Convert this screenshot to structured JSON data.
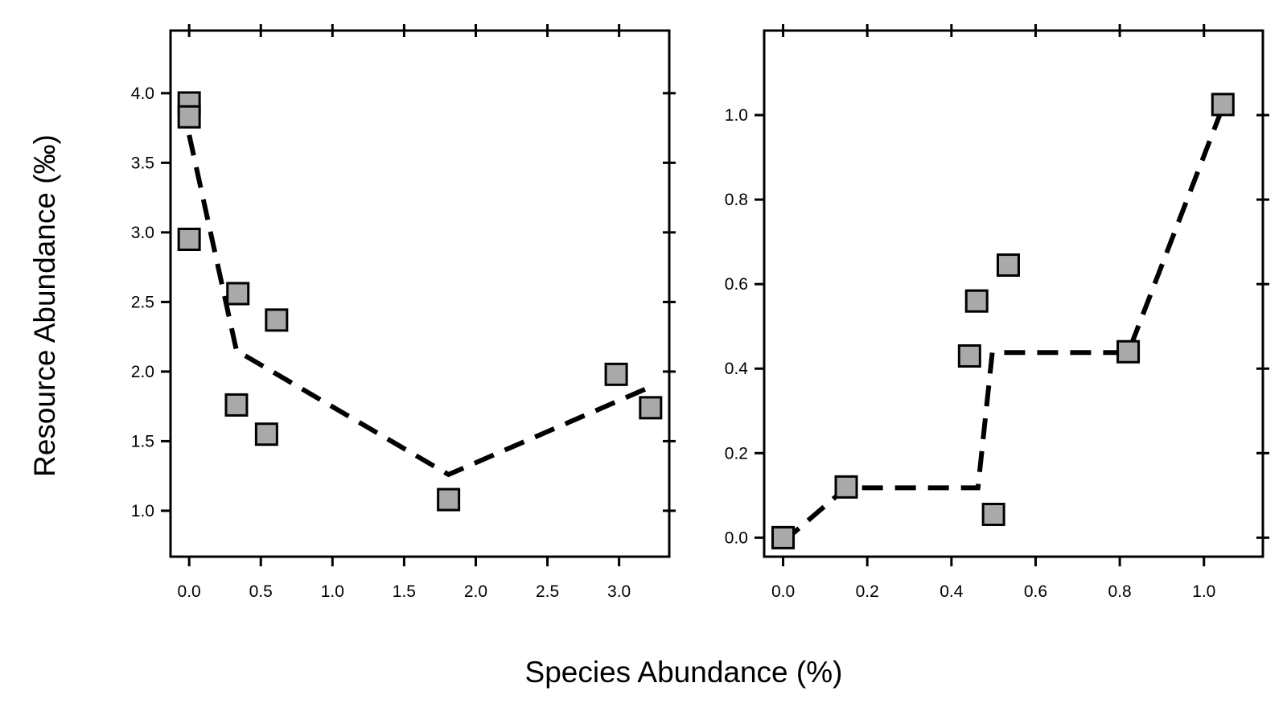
{
  "figure": {
    "xlabel": "Species Abundance (%)",
    "ylabel": "Resource Abundance (‰)",
    "colors": {
      "marker_fill": "#a9a9a9",
      "line": "#000000",
      "frame": "#000000"
    }
  },
  "chart_data": [
    {
      "type": "scatter",
      "panel": "left",
      "xlim": [
        -0.13,
        3.35
      ],
      "ylim": [
        0.67,
        4.45
      ],
      "xticks": [
        "0.0",
        "0.5",
        "1.0",
        "1.5",
        "2.0",
        "2.5",
        "3.0"
      ],
      "yticks": [
        "1.0",
        "1.5",
        "2.0",
        "2.5",
        "3.0",
        "3.5",
        "4.0"
      ],
      "grid": false,
      "series": [
        {
          "kind": "points",
          "marker": "square",
          "x": [
            0.0,
            0.0,
            0.0,
            0.34,
            0.61,
            0.33,
            0.54,
            1.81,
            2.98,
            3.22
          ],
          "y": [
            3.93,
            3.83,
            2.95,
            2.56,
            2.37,
            1.76,
            1.55,
            1.08,
            1.98,
            1.74
          ]
        },
        {
          "kind": "line",
          "style": "dashed",
          "x": [
            0.0,
            0.33,
            1.81,
            3.22
          ],
          "y": [
            3.7,
            2.15,
            1.26,
            1.89
          ]
        }
      ]
    },
    {
      "type": "scatter",
      "panel": "right",
      "xlim": [
        -0.045,
        1.14
      ],
      "ylim": [
        -0.045,
        1.2
      ],
      "xticks": [
        "0.0",
        "0.2",
        "0.4",
        "0.6",
        "0.8",
        "1.0"
      ],
      "yticks": [
        "0.0",
        "0.2",
        "0.4",
        "0.6",
        "0.8",
        "1.0"
      ],
      "grid": false,
      "series": [
        {
          "kind": "points",
          "marker": "square",
          "x": [
            0.0,
            0.15,
            0.46,
            0.443,
            0.535,
            0.5,
            0.82,
            1.045
          ],
          "y": [
            0.0,
            0.12,
            0.56,
            0.43,
            0.645,
            0.055,
            0.44,
            1.025
          ]
        },
        {
          "kind": "line",
          "style": "dashed",
          "x": [
            0.0,
            0.15,
            0.463,
            0.497,
            0.82,
            1.045
          ],
          "y": [
            -0.01,
            0.118,
            0.118,
            0.438,
            0.438,
            1.02
          ]
        }
      ]
    }
  ]
}
